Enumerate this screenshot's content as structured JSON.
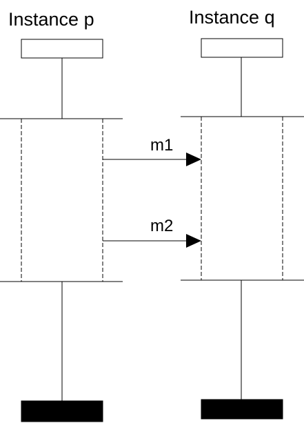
{
  "instances": [
    {
      "name": "Instance p"
    },
    {
      "name": "Instance q"
    }
  ],
  "messages": [
    {
      "label": "m1",
      "from": "Instance p",
      "to": "Instance q"
    },
    {
      "label": "m2",
      "from": "Instance p",
      "to": "Instance q"
    }
  ]
}
